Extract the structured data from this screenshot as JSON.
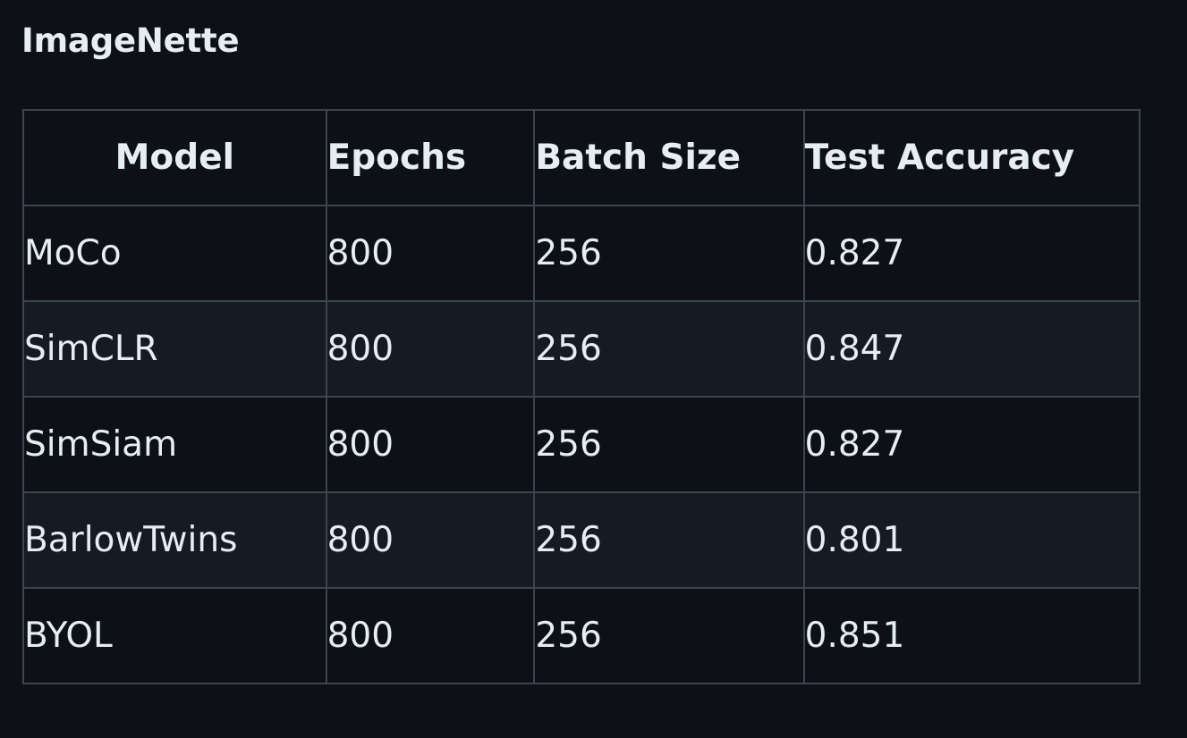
{
  "heading": "ImageNette",
  "table": {
    "columns": [
      "Model",
      "Epochs",
      "Batch Size",
      "Test Accuracy"
    ],
    "rows": [
      {
        "model": "MoCo",
        "epochs": "800",
        "batch_size": "256",
        "test_accuracy": "0.827"
      },
      {
        "model": "SimCLR",
        "epochs": "800",
        "batch_size": "256",
        "test_accuracy": "0.847"
      },
      {
        "model": "SimSiam",
        "epochs": "800",
        "batch_size": "256",
        "test_accuracy": "0.827"
      },
      {
        "model": "BarlowTwins",
        "epochs": "800",
        "batch_size": "256",
        "test_accuracy": "0.801"
      },
      {
        "model": "BYOL",
        "epochs": "800",
        "batch_size": "256",
        "test_accuracy": "0.851"
      }
    ]
  },
  "colors": {
    "background": "#0d1117",
    "row_alt": "#151b23",
    "border": "#3d444d",
    "text": "#e6edf3"
  }
}
